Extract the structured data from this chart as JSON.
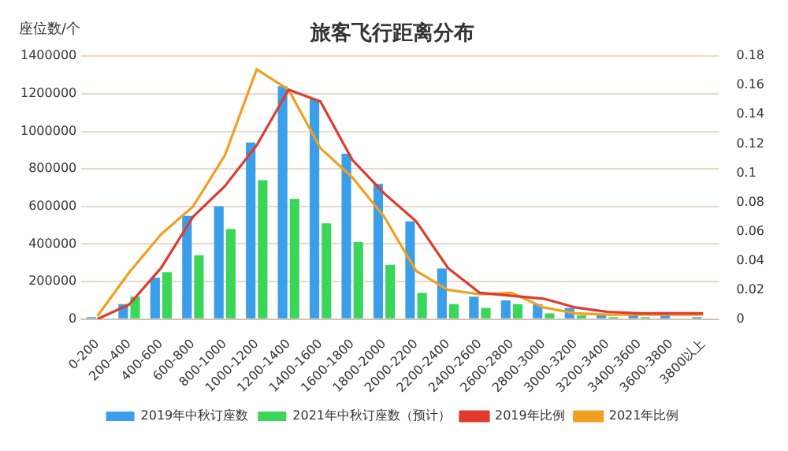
{
  "chart_data": {
    "type": "bar",
    "title": "旅客飞行距离分布",
    "ylabel": "座位数/个",
    "categories": [
      "0-200",
      "200-400",
      "400-600",
      "600-800",
      "800-1000",
      "1000-1200",
      "1200-1400",
      "1400-1600",
      "1600-1800",
      "1800-2000",
      "2000-2200",
      "2200-2400",
      "2400-2600",
      "2600-2800",
      "2800-3000",
      "3000-3200",
      "3200-3400",
      "3400-3600",
      "3600-3800",
      "3800以上"
    ],
    "series": [
      {
        "name": "2019年中秋订座数",
        "color": "#3a9ee8",
        "values": [
          10000,
          80000,
          220000,
          550000,
          600000,
          940000,
          1240000,
          1170000,
          880000,
          720000,
          520000,
          270000,
          120000,
          100000,
          80000,
          60000,
          30000,
          20000,
          20000,
          10000
        ]
      },
      {
        "name": "2021年中秋订座数（预计）",
        "color": "#3ad65a",
        "values": [
          0,
          120000,
          250000,
          340000,
          480000,
          740000,
          640000,
          510000,
          410000,
          290000,
          140000,
          80000,
          60000,
          80000,
          30000,
          20000,
          10000,
          10000,
          0,
          0
        ]
      },
      {
        "name": "2019年比例",
        "type": "line",
        "axis": "y2",
        "color": "#e03a2e",
        "values": [
          0,
          0.01,
          0.035,
          0.07,
          0.091,
          0.119,
          0.157,
          0.149,
          0.109,
          0.086,
          0.067,
          0.035,
          0.018,
          0.016,
          0.014,
          0.008,
          0.005,
          0.004,
          0.004,
          0.004
        ]
      },
      {
        "name": "2021年比例",
        "type": "line",
        "axis": "y2",
        "color": "#f0a020",
        "values": [
          0.002,
          0.032,
          0.058,
          0.077,
          0.112,
          0.171,
          0.157,
          0.117,
          0.097,
          0.07,
          0.033,
          0.02,
          0.017,
          0.018,
          0.008,
          0.004,
          0.003,
          0.003,
          0.003,
          0.003
        ]
      }
    ],
    "ylim": [
      0,
      1400000
    ],
    "yticks": [
      0,
      200000,
      400000,
      600000,
      800000,
      1000000,
      1200000,
      1400000
    ],
    "y2lim": [
      0,
      0.18
    ],
    "y2ticks": [
      0,
      0.02,
      0.04,
      0.06,
      0.08,
      0.1,
      0.12,
      0.14,
      0.16,
      0.18
    ],
    "grid": "y",
    "legend": "bottom",
    "marker": "none",
    "line_style": "solid"
  }
}
